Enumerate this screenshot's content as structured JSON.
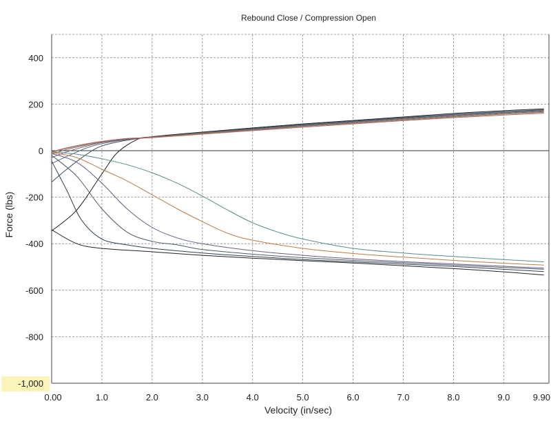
{
  "chart_data": {
    "type": "line",
    "title": "Rebound Close / Compression Open",
    "xlabel": "Velocity (in/sec)",
    "ylabel": "Force (lbs)",
    "xlim": [
      0,
      9.9
    ],
    "ylim": [
      -1000,
      500
    ],
    "grid": true,
    "legend": "none",
    "x_ticks": [
      {
        "value": 0,
        "label": "0.00"
      },
      {
        "value": 1,
        "label": "1.0"
      },
      {
        "value": 2,
        "label": "2.0"
      },
      {
        "value": 3,
        "label": "3.0"
      },
      {
        "value": 4,
        "label": "4.0"
      },
      {
        "value": 5,
        "label": "5.0"
      },
      {
        "value": 6,
        "label": "6.0"
      },
      {
        "value": 7,
        "label": "7.0"
      },
      {
        "value": 8,
        "label": "8.0"
      },
      {
        "value": 9,
        "label": "9.0"
      },
      {
        "value": 9.9,
        "label": "9.90"
      }
    ],
    "y_ticks": [
      {
        "value": 400,
        "label": "400"
      },
      {
        "value": 200,
        "label": "200"
      },
      {
        "value": 0,
        "label": "0"
      },
      {
        "value": -200,
        "label": "-200"
      },
      {
        "value": -400,
        "label": "-400"
      },
      {
        "value": -600,
        "label": "-600"
      },
      {
        "value": -800,
        "label": "-800"
      },
      {
        "value": -1000,
        "label": "-1,000"
      }
    ],
    "highlight_color": "#fbf4b8",
    "series": [
      {
        "color": "#1f1f1f",
        "x": [
          0,
          0.5,
          1.0,
          1.3,
          1.7,
          2,
          3,
          4,
          5,
          6,
          7,
          8,
          9,
          9.8
        ],
        "y": [
          -345,
          -255,
          -100,
          -10,
          48,
          60,
          80,
          98,
          115,
          130,
          145,
          160,
          172,
          180
        ]
      },
      {
        "color": "#3a4a5a",
        "x": [
          0,
          0.3,
          0.7,
          1.0,
          1.5,
          2,
          3,
          4,
          5,
          6,
          7,
          8,
          9,
          9.8
        ],
        "y": [
          -135,
          -80,
          -15,
          20,
          45,
          58,
          78,
          95,
          112,
          127,
          142,
          156,
          168,
          176
        ]
      },
      {
        "color": "#5a6e7e",
        "x": [
          0,
          0.3,
          0.7,
          1.0,
          1.5,
          2,
          3,
          4,
          5,
          6,
          7,
          8,
          9,
          9.8
        ],
        "y": [
          -55,
          -25,
          12,
          30,
          48,
          58,
          77,
          93,
          110,
          125,
          140,
          154,
          166,
          174
        ]
      },
      {
        "color": "#6e5a7e",
        "x": [
          0,
          0.3,
          0.7,
          1.0,
          1.5,
          2,
          3,
          4,
          5,
          6,
          7,
          8,
          9,
          9.8
        ],
        "y": [
          -30,
          -5,
          20,
          35,
          50,
          58,
          76,
          92,
          108,
          123,
          138,
          151,
          163,
          171
        ]
      },
      {
        "color": "#8a6a55",
        "x": [
          0,
          0.3,
          0.7,
          1.0,
          1.5,
          2,
          3,
          4,
          5,
          6,
          7,
          8,
          9,
          9.8
        ],
        "y": [
          -15,
          5,
          25,
          38,
          52,
          58,
          75,
          90,
          106,
          120,
          135,
          148,
          160,
          168
        ]
      },
      {
        "color": "#7a8a6a",
        "x": [
          0,
          0.3,
          0.7,
          1.0,
          1.5,
          2,
          3,
          4,
          5,
          6,
          7,
          8,
          9,
          9.8
        ],
        "y": [
          -8,
          10,
          28,
          40,
          52,
          57,
          73,
          88,
          104,
          118,
          132,
          145,
          157,
          165
        ]
      },
      {
        "color": "#c06060",
        "x": [
          0,
          0.3,
          0.7,
          1.0,
          1.5,
          2,
          3,
          4,
          5,
          6,
          7,
          8,
          9,
          9.8
        ],
        "y": [
          -5,
          12,
          30,
          40,
          52,
          56,
          71,
          86,
          101,
          115,
          129,
          142,
          153,
          161
        ]
      },
      {
        "color": "#1f1f1f",
        "x": [
          0,
          0.5,
          1.0,
          2,
          3,
          4,
          5,
          6,
          7,
          8,
          9,
          9.8
        ],
        "y": [
          -340,
          -400,
          -420,
          -435,
          -450,
          -462,
          -473,
          -483,
          -495,
          -507,
          -521,
          -535
        ]
      },
      {
        "color": "#2f3f4f",
        "x": [
          0,
          0.3,
          0.6,
          1.0,
          1.5,
          2,
          3,
          4,
          5,
          6,
          7,
          8,
          9,
          9.8
        ],
        "y": [
          -45,
          -170,
          -300,
          -380,
          -405,
          -420,
          -440,
          -455,
          -468,
          -478,
          -488,
          -498,
          -510,
          -520
        ]
      },
      {
        "color": "#4a5a6a",
        "x": [
          0,
          0.5,
          1.0,
          1.5,
          2,
          2.5,
          3,
          4,
          5,
          6,
          7,
          8,
          9,
          9.8
        ],
        "y": [
          -20,
          -110,
          -250,
          -350,
          -390,
          -405,
          -425,
          -445,
          -460,
          -472,
          -482,
          -492,
          -502,
          -510
        ]
      },
      {
        "color": "#6a5a8a",
        "x": [
          0,
          0.5,
          1.0,
          1.5,
          2,
          2.5,
          3,
          4,
          5,
          6,
          7,
          8,
          9,
          9.8
        ],
        "y": [
          -12,
          -50,
          -140,
          -250,
          -330,
          -375,
          -400,
          -430,
          -450,
          -465,
          -477,
          -487,
          -497,
          -505
        ]
      },
      {
        "color": "#c07a40",
        "x": [
          0,
          0.5,
          1.0,
          1.5,
          2,
          2.5,
          3,
          3.5,
          4,
          5,
          6,
          7,
          8,
          9,
          9.8
        ],
        "y": [
          -8,
          -30,
          -80,
          -130,
          -190,
          -250,
          -305,
          -355,
          -385,
          -420,
          -442,
          -458,
          -472,
          -484,
          -492
        ]
      },
      {
        "color": "#5a8a8a",
        "x": [
          0,
          0.5,
          1.0,
          1.5,
          2,
          2.5,
          3,
          3.5,
          4,
          4.5,
          5,
          6,
          7,
          8,
          9,
          9.8
        ],
        "y": [
          -5,
          -15,
          -35,
          -60,
          -95,
          -140,
          -195,
          -255,
          -310,
          -350,
          -380,
          -420,
          -440,
          -455,
          -468,
          -478
        ]
      }
    ]
  }
}
